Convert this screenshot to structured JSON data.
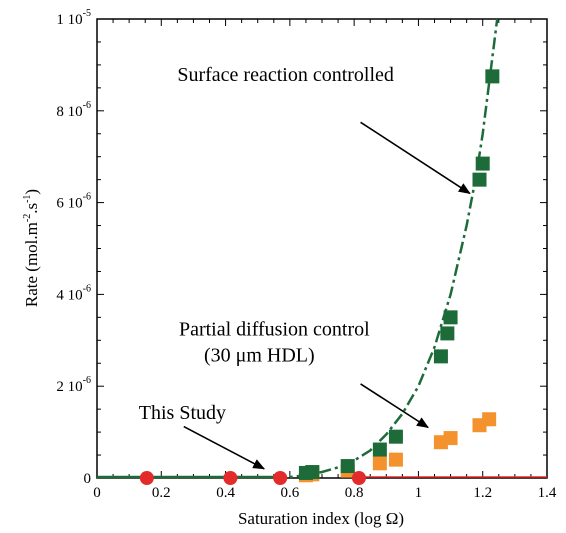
{
  "chart_data": {
    "type": "scatter",
    "title": "",
    "xlabel": "Saturation index (log Ω)",
    "ylabel_parts": [
      "Rate (mol.m",
      "-2",
      ".s",
      "-1",
      ")"
    ],
    "xlim": [
      0,
      1.4
    ],
    "ylim": [
      0,
      1e-05
    ],
    "x_ticks": [
      "0",
      "0.2",
      "0.4",
      "0.6",
      "0.8",
      "1",
      "1.2",
      "1.4"
    ],
    "y_ticks": [
      {
        "value": 0,
        "mantissa": "0",
        "exp": ""
      },
      {
        "value": 2e-06,
        "mantissa": "2 10",
        "exp": "-6"
      },
      {
        "value": 4e-06,
        "mantissa": "4 10",
        "exp": "-6"
      },
      {
        "value": 6e-06,
        "mantissa": "6 10",
        "exp": "-6"
      },
      {
        "value": 8e-06,
        "mantissa": "8 10",
        "exp": "-6"
      },
      {
        "value": 1e-05,
        "mantissa": "1 10",
        "exp": "-5"
      }
    ],
    "series": [
      {
        "name": "Surface reaction controlled",
        "color": "#1e6b3a",
        "marker": "square",
        "points": [
          [
            0.65,
            1.1e-07
          ],
          [
            0.67,
            1.3e-07
          ],
          [
            0.78,
            2.6e-07
          ],
          [
            0.88,
            6.2e-07
          ],
          [
            0.93,
            9e-07
          ],
          [
            1.07,
            2.65e-06
          ],
          [
            1.09,
            3.15e-06
          ],
          [
            1.1,
            3.5e-06
          ],
          [
            1.19,
            6.5e-06
          ],
          [
            1.2,
            6.85e-06
          ],
          [
            1.23,
            8.75e-06
          ]
        ]
      },
      {
        "name": "Partial diffusion control (30 μm HDL)",
        "color": "#f4922e",
        "marker": "square",
        "points": [
          [
            0.65,
            6e-08
          ],
          [
            0.67,
            8e-08
          ],
          [
            0.78,
            1.6e-07
          ],
          [
            0.88,
            3.2e-07
          ],
          [
            0.93,
            4e-07
          ],
          [
            1.07,
            7.8e-07
          ],
          [
            1.1,
            8.7e-07
          ],
          [
            1.19,
            1.15e-06
          ],
          [
            1.22,
            1.28e-06
          ]
        ]
      },
      {
        "name": "This Study",
        "color": "#e32b2b",
        "marker": "circle",
        "points": [
          [
            0.155,
            0
          ],
          [
            0.415,
            0
          ],
          [
            0.57,
            0
          ],
          [
            0.815,
            0
          ]
        ]
      }
    ],
    "fit_curve": {
      "color": "#1e6b3a",
      "style": "dash-dot",
      "points": [
        [
          0.55,
          0
        ],
        [
          0.6,
          2e-08
        ],
        [
          0.65,
          6e-08
        ],
        [
          0.7,
          1.3e-07
        ],
        [
          0.75,
          2.3e-07
        ],
        [
          0.8,
          3.8e-07
        ],
        [
          0.85,
          6e-07
        ],
        [
          0.9,
          9.5e-07
        ],
        [
          0.95,
          1.4e-06
        ],
        [
          1.0,
          2e-06
        ],
        [
          1.05,
          2.85e-06
        ],
        [
          1.1,
          4e-06
        ],
        [
          1.15,
          5.5e-06
        ],
        [
          1.18,
          6.6e-06
        ],
        [
          1.2,
          7.5e-06
        ],
        [
          1.22,
          8.6e-06
        ],
        [
          1.245,
          1e-05
        ]
      ]
    },
    "annotations": [
      {
        "lines": [
          "Surface reaction controlled"
        ],
        "text_at": [
          0.25,
          8.65e-06
        ],
        "arrow_from": [
          0.82,
          7.75e-06
        ],
        "arrow_to": [
          1.16,
          6.2e-06
        ]
      },
      {
        "lines": [
          "Partial diffusion control",
          "(30 μm HDL)"
        ],
        "text_at": [
          0.255,
          3.1e-06
        ],
        "arrow_from": [
          0.82,
          2.05e-06
        ],
        "arrow_to": [
          1.03,
          1.1e-06
        ]
      },
      {
        "lines": [
          "This Study"
        ],
        "text_at": [
          0.13,
          1.28e-06
        ],
        "arrow_from": [
          0.27,
          1.12e-06
        ],
        "arrow_to": [
          0.52,
          2e-07
        ]
      }
    ]
  }
}
